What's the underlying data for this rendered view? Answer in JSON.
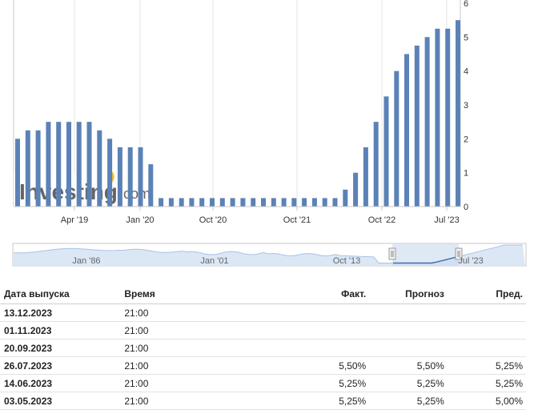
{
  "chart_data": {
    "type": "bar",
    "values": [
      2.0,
      2.25,
      2.25,
      2.5,
      2.5,
      2.5,
      2.5,
      2.5,
      2.25,
      2.0,
      1.75,
      1.75,
      1.75,
      1.25,
      0.25,
      0.25,
      0.25,
      0.25,
      0.25,
      0.25,
      0.25,
      0.25,
      0.25,
      0.25,
      0.25,
      0.25,
      0.25,
      0.25,
      0.25,
      0.25,
      0.25,
      0.25,
      0.5,
      1.0,
      1.75,
      2.5,
      3.25,
      4.0,
      4.5,
      4.75,
      5.0,
      5.25,
      5.25,
      5.5
    ],
    "x_tick_labels": [
      "Apr '19",
      "Jan '20",
      "Oct '20",
      "Oct '21",
      "Oct '22",
      "Jul '23"
    ],
    "y_tick_labels": [
      "0",
      "1",
      "2",
      "3",
      "4",
      "5",
      "6"
    ],
    "ylim": [
      0,
      6
    ],
    "grid": true,
    "bar_color": "#5b82b7"
  },
  "navigator": {
    "labels": [
      "Jan '86",
      "Jan '01",
      "Oct '13",
      "Jul '23"
    ],
    "line_color": "#3f6fa8",
    "fill_color": "#dbe7f5"
  },
  "watermark": {
    "brand_main": "Investing",
    "brand_suffix": ".com"
  },
  "table": {
    "headers": {
      "date": "Дата выпуска",
      "time": "Время",
      "actual": "Факт.",
      "forecast": "Прогноз",
      "previous": "Пред."
    },
    "rows": [
      {
        "date": "13.12.2023",
        "time": "21:00",
        "actual": "",
        "forecast": "",
        "previous": ""
      },
      {
        "date": "01.11.2023",
        "time": "21:00",
        "actual": "",
        "forecast": "",
        "previous": ""
      },
      {
        "date": "20.09.2023",
        "time": "21:00",
        "actual": "",
        "forecast": "",
        "previous": ""
      },
      {
        "date": "26.07.2023",
        "time": "21:00",
        "actual": "5,50%",
        "forecast": "5,50%",
        "previous": "5,25%"
      },
      {
        "date": "14.06.2023",
        "time": "21:00",
        "actual": "5,25%",
        "forecast": "5,25%",
        "previous": "5,25%"
      },
      {
        "date": "03.05.2023",
        "time": "21:00",
        "actual": "5,25%",
        "forecast": "5,25%",
        "previous": "5,00%"
      }
    ]
  }
}
